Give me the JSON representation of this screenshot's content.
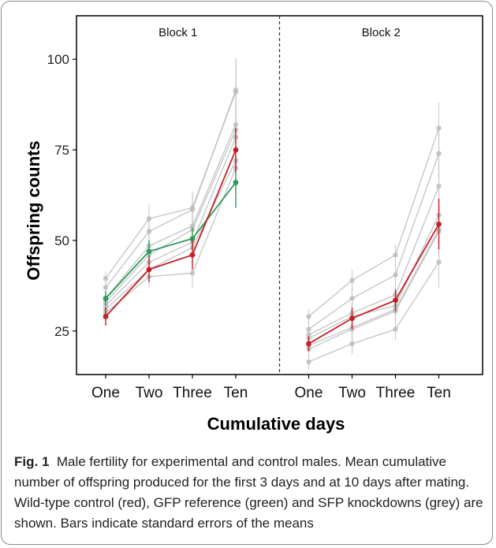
{
  "figure": {
    "caption_label": "Fig. 1",
    "caption_text": "Male fertility for experimental and control males. Mean cumulative number of offspring produced for the first 3 days and at 10 days after mating. Wild-type control (red), GFP reference (green) and SFP knockdowns (grey) are shown. Bars indicate standard errors of the means"
  },
  "colors": {
    "control": "#c42127",
    "gfp": "#2e9a5c",
    "knockdown": "#bdbdbd",
    "axis": "#000000"
  },
  "chart_data": {
    "type": "line",
    "xlabel": "Cumulative days",
    "ylabel": "Offspring counts",
    "categories": [
      "One",
      "Two",
      "Three",
      "Ten"
    ],
    "yticks": [
      25,
      50,
      75,
      100
    ],
    "ylim": [
      13,
      112
    ],
    "grid": false,
    "panels": [
      {
        "title": "Block 1",
        "series": [
          {
            "group": "control",
            "values": [
              29,
              42,
              46,
              75
            ],
            "se": [
              2.5,
              3.5,
              4,
              6
            ]
          },
          {
            "group": "gfp",
            "values": [
              34,
              47,
              50.5,
              66
            ],
            "se": [
              2,
              3,
              3,
              7
            ]
          },
          {
            "group": "knockdown",
            "values": [
              39.5,
              56,
              59,
              91
            ],
            "se": [
              2,
              4,
              4.5,
              9
            ]
          },
          {
            "group": "knockdown",
            "values": [
              37,
              52.5,
              58.5,
              91.5
            ],
            "se": [
              2,
              4,
              4,
              9
            ]
          },
          {
            "group": "knockdown",
            "values": [
              34,
              48.5,
              54,
              82
            ],
            "se": [
              2,
              3.5,
              4,
              8
            ]
          },
          {
            "group": "knockdown",
            "values": [
              33,
              46,
              53,
              80.5
            ],
            "se": [
              2,
              3.5,
              4,
              8
            ]
          },
          {
            "group": "knockdown",
            "values": [
              32,
              44,
              49.5,
              78.5
            ],
            "se": [
              2,
              3.5,
              4,
              7
            ]
          },
          {
            "group": "knockdown",
            "values": [
              31,
              42,
              48,
              72
            ],
            "se": [
              2,
              3,
              4,
              7
            ]
          },
          {
            "group": "knockdown",
            "values": [
              30,
              40,
              41,
              70
            ],
            "se": [
              2,
              3,
              4,
              7
            ]
          }
        ]
      },
      {
        "title": "Block 2",
        "series": [
          {
            "group": "control",
            "values": [
              21.5,
              28.5,
              33.5,
              54.5
            ],
            "se": [
              2,
              3,
              3,
              7
            ]
          },
          {
            "group": "knockdown",
            "values": [
              29,
              39,
              46,
              81
            ],
            "se": [
              2,
              3,
              3,
              7
            ]
          },
          {
            "group": "knockdown",
            "values": [
              25.5,
              34,
              40.5,
              74
            ],
            "se": [
              2,
              3,
              3,
              7
            ]
          },
          {
            "group": "knockdown",
            "values": [
              24,
              30,
              35,
              65
            ],
            "se": [
              2,
              3,
              3,
              7
            ]
          },
          {
            "group": "knockdown",
            "values": [
              23,
              29,
              32,
              57
            ],
            "se": [
              2,
              3,
              3,
              7
            ]
          },
          {
            "group": "knockdown",
            "values": [
              21,
              26,
              31,
              53
            ],
            "se": [
              2,
              3,
              3,
              7
            ]
          },
          {
            "group": "knockdown",
            "values": [
              20,
              25.5,
              30.5,
              52.5
            ],
            "se": [
              2,
              3,
              3,
              7
            ]
          },
          {
            "group": "knockdown",
            "values": [
              16.5,
              21.5,
              25.5,
              44
            ],
            "se": [
              2,
              3,
              3,
              7
            ]
          }
        ]
      }
    ]
  }
}
